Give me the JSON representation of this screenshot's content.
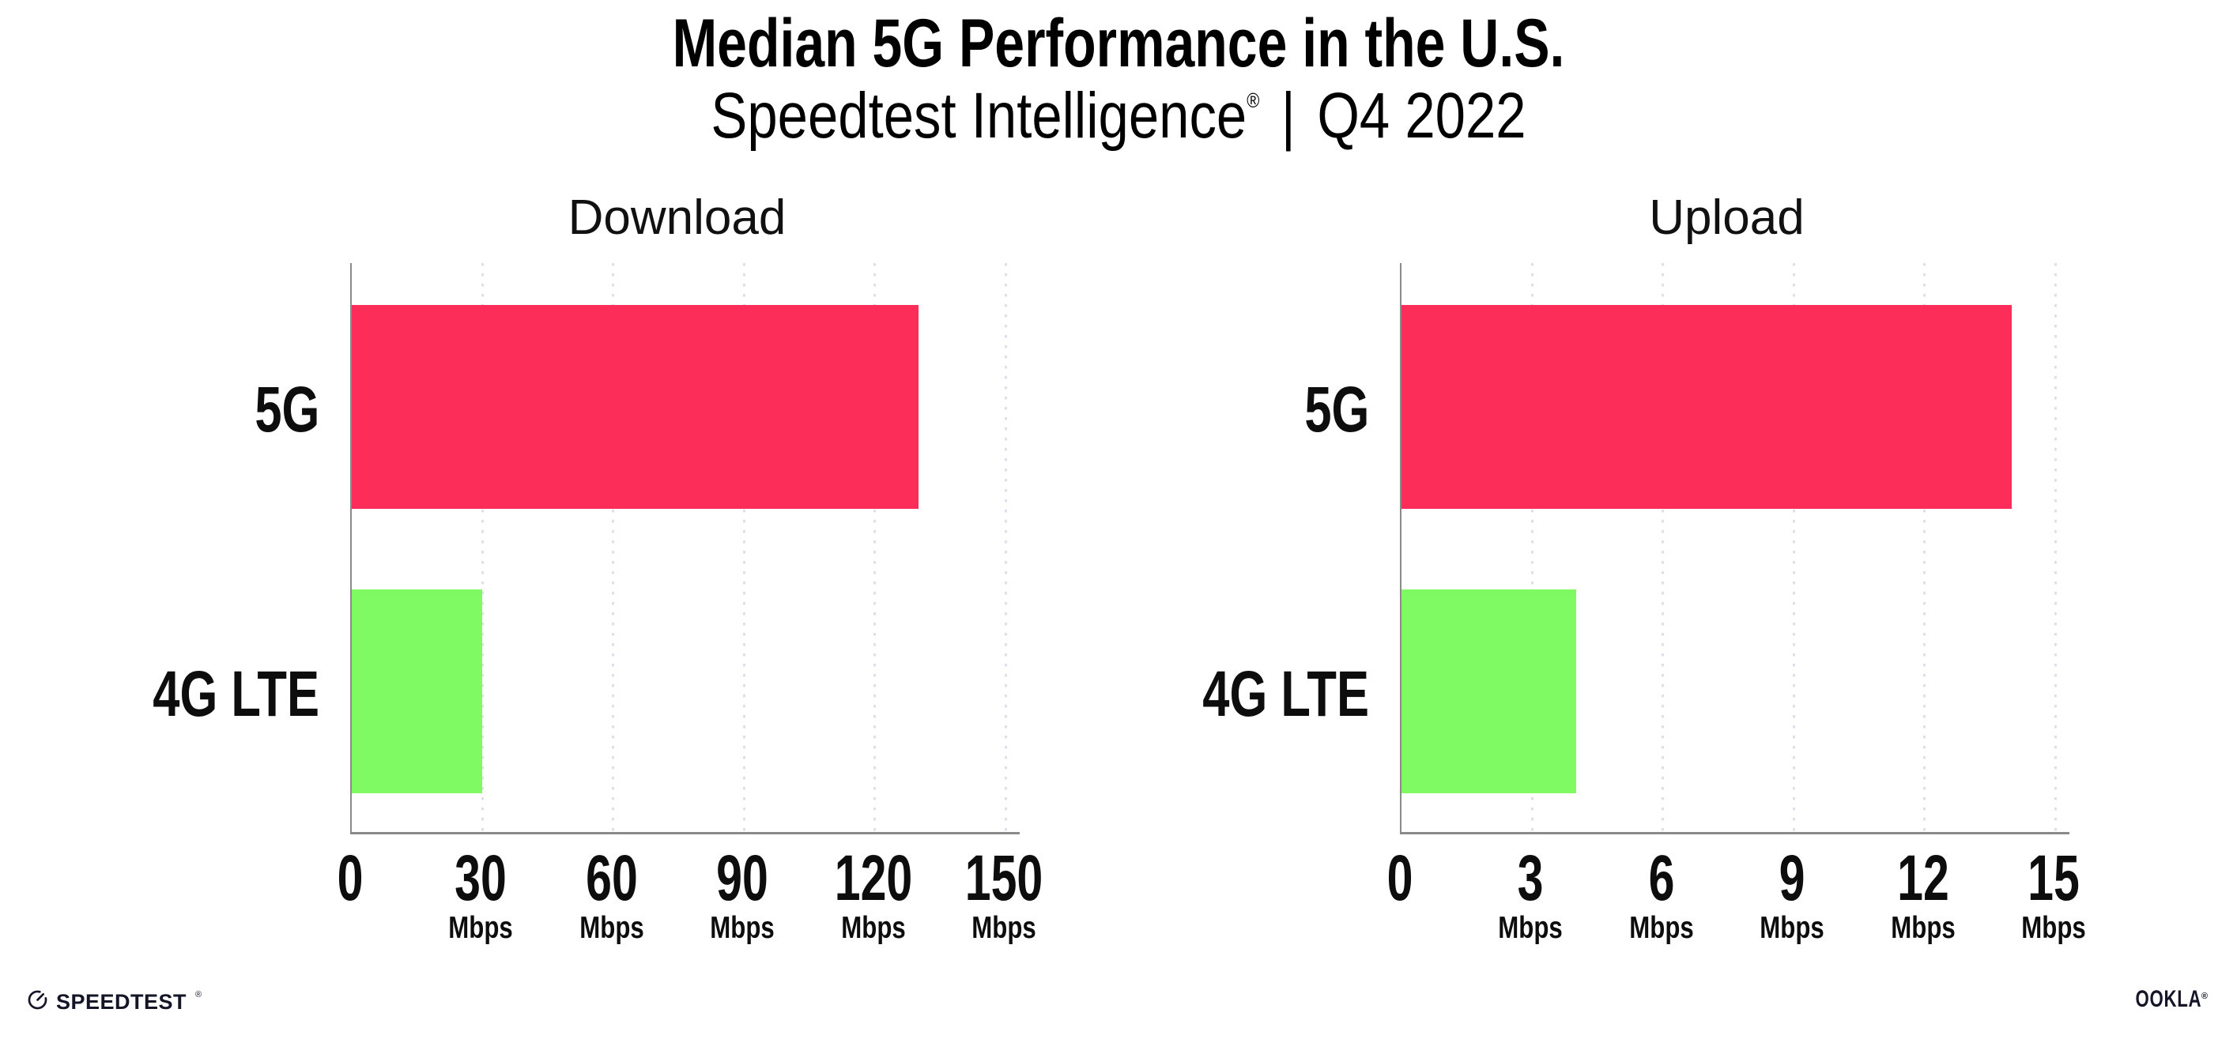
{
  "header": {
    "title": "Median 5G Performance in the U.S.",
    "subtitle": {
      "brand": "Speedtest Intelligence",
      "registered": "®",
      "separator": "|",
      "period": "Q4 2022"
    }
  },
  "chart_data": [
    {
      "type": "bar",
      "title": "Download",
      "orientation": "horizontal",
      "categories": [
        "5G",
        "4G LTE"
      ],
      "values": [
        130,
        30
      ],
      "unit": "Mbps",
      "xlim": [
        0,
        150
      ],
      "xticks": [
        0,
        30,
        60,
        90,
        120,
        150
      ],
      "grid": "vertical-dotted",
      "bar_colors": [
        "#fd2d5a",
        "#80fa62"
      ]
    },
    {
      "type": "bar",
      "title": "Upload",
      "orientation": "horizontal",
      "categories": [
        "5G",
        "4G LTE"
      ],
      "values": [
        14,
        4
      ],
      "unit": "Mbps",
      "xlim": [
        0,
        15
      ],
      "xticks": [
        0,
        3,
        6,
        9,
        12,
        15
      ],
      "grid": "vertical-dotted",
      "bar_colors": [
        "#fd2d5a",
        "#80fa62"
      ]
    }
  ],
  "footer": {
    "speedtest": {
      "label": "SPEEDTEST",
      "trademark": "®"
    },
    "ookla": {
      "label": "OOKLA",
      "trademark": "®"
    }
  },
  "colors": {
    "bar_5g": "#fd2d5a",
    "bar_4g_lte": "#80fa62",
    "gridline": "#dfdfeb",
    "axis": "#8a8a8a",
    "text": "#0d0d0d",
    "footer": "#141526"
  }
}
